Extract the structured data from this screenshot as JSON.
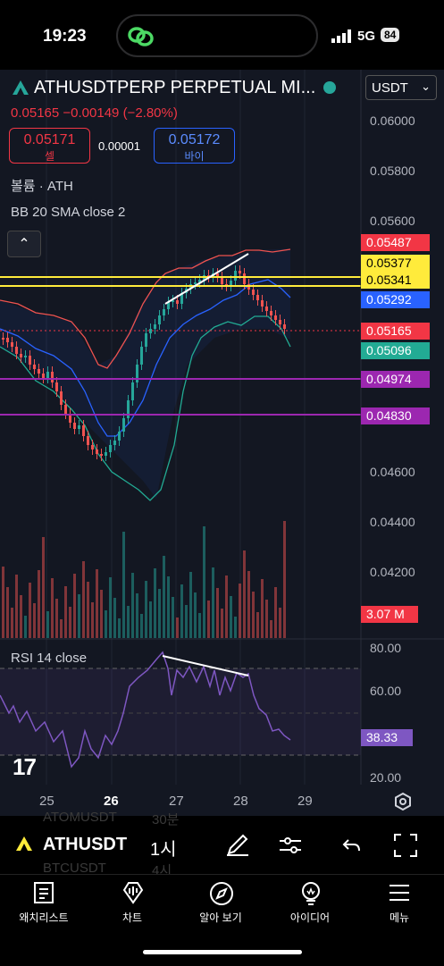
{
  "status_bar": {
    "time": "19:23",
    "network": "5G",
    "battery": "84"
  },
  "symbol": {
    "title": "ATHUSDTPERP PERPETUAL MI...",
    "currency": "USDT",
    "price": "0.05165",
    "change": "−0.00149",
    "change_pct": "(−2.80%)",
    "sell_price": "0.05171",
    "sell_label": "셀",
    "buy_price": "0.05172",
    "buy_label": "바이",
    "spread": "0.00001"
  },
  "indicators": {
    "volume": "볼륨 · ATH",
    "bb": "BB 20 SMA close 2",
    "rsi": "RSI 14 close"
  },
  "price_axis": [
    "0.06000",
    "0.05800",
    "0.05600",
    "0.05200",
    "0.05000",
    "0.04800",
    "0.04600",
    "0.04400",
    "0.04200",
    "0.04000"
  ],
  "price_tags": [
    {
      "label": "0.05487",
      "color": "#f23645",
      "text": "#ffffff"
    },
    {
      "label": "0.05377",
      "color": "#ffeb3b",
      "text": "#000000"
    },
    {
      "label": "0.05341",
      "color": "#ffeb3b",
      "text": "#000000"
    },
    {
      "label": "0.05292",
      "color": "#2962ff",
      "text": "#ffffff"
    },
    {
      "label": "0.05165",
      "color": "#f23645",
      "text": "#ffffff"
    },
    {
      "label": "0.05096",
      "color": "#22ab94",
      "text": "#ffffff"
    },
    {
      "label": "0.04974",
      "color": "#9c27b0",
      "text": "#ffffff"
    },
    {
      "label": "0.04830",
      "color": "#9c27b0",
      "text": "#ffffff"
    }
  ],
  "volume_tag": "3.07 M",
  "rsi_axis": [
    "80.00",
    "60.00",
    "20.00"
  ],
  "rsi_value": "38.33",
  "time_axis": [
    "25",
    "26",
    "27",
    "28",
    "29"
  ],
  "toolbar": {
    "symbol": "ATHUSDT",
    "interval": "1시",
    "ghost1": "ATOMUSDT",
    "ghost1b": "30분",
    "ghost2": "BTCUSDT",
    "ghost2b": "4시"
  },
  "tabs": [
    {
      "label": "왜치리스트",
      "icon": "watchlist-icon"
    },
    {
      "label": "차트",
      "icon": "chart-icon"
    },
    {
      "label": "알아 보기",
      "icon": "compass-icon"
    },
    {
      "label": "아이디어",
      "icon": "idea-bulb-icon"
    },
    {
      "label": "메뉴",
      "icon": "menu-icon"
    }
  ],
  "colors": {
    "up": "#26a69a",
    "down": "#ef5350",
    "yellow": "#ffeb3b",
    "purple": "#9c27b0",
    "rsi": "#7e57c2"
  }
}
